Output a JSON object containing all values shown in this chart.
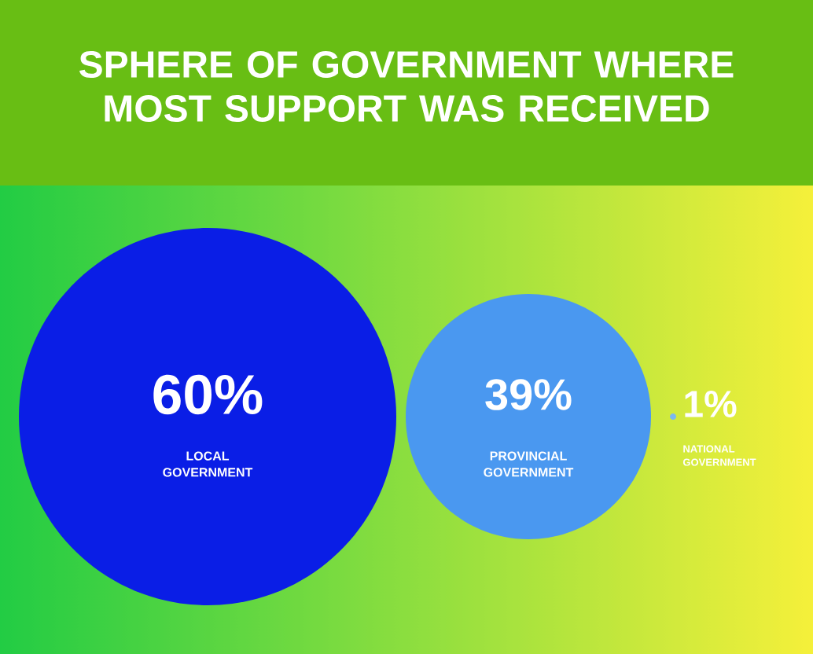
{
  "chart_data": {
    "type": "other",
    "title": "SPHERE OF GOVERNMENT WHERE MOST SUPPORT WAS RECEIVED",
    "categories": [
      "LOCAL GOVERNMENT",
      "PROVINCIAL GOVERNMENT",
      "NATIONAL GOVERNMENT"
    ],
    "values": [
      60,
      39,
      1
    ],
    "value_labels": [
      "60%",
      "39%",
      "1%"
    ],
    "colors": [
      "#0a1ee6",
      "#4a98f0",
      "#7ab8f0"
    ]
  }
}
